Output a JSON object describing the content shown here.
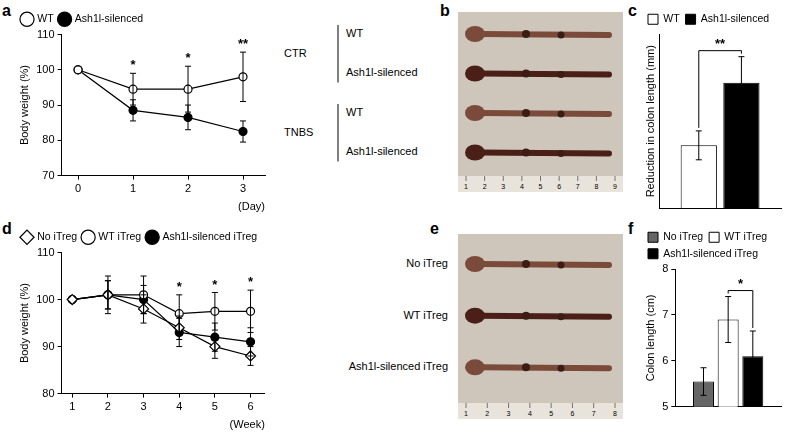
{
  "chart_data": [
    {
      "panel": "a",
      "type": "line",
      "y_label": "Body weight (%)",
      "x_label": "(Day)",
      "x": [
        0,
        1,
        2,
        3
      ],
      "xlim": [
        -0.3,
        3.4
      ],
      "xticks": [
        0,
        1,
        2,
        3
      ],
      "ylim": [
        70,
        110
      ],
      "yticks": [
        70,
        80,
        90,
        100,
        110
      ],
      "grid": false,
      "legend": "top-left",
      "series": [
        {
          "name": "WT",
          "color": "#000000",
          "marker": "circle-open",
          "values": [
            100,
            94.5,
            94.5,
            98
          ],
          "errors": [
            0,
            4.5,
            6.5,
            7
          ]
        },
        {
          "name": "Ash1l-silenced",
          "color": "#000000",
          "marker": "circle",
          "values": [
            100,
            88.5,
            86.5,
            82.5
          ],
          "errors": [
            0,
            3,
            3.5,
            3
          ]
        }
      ],
      "annotations": [
        {
          "x": 1,
          "text": "*"
        },
        {
          "x": 2,
          "text": "*"
        },
        {
          "x": 3,
          "text": "**"
        }
      ]
    },
    {
      "panel": "c",
      "type": "bar",
      "y_label": "Reduction in colon length (mm)",
      "categories": [
        null
      ],
      "ylim": [
        0,
        18
      ],
      "tick_labels": false,
      "grid": false,
      "legend": "top-left",
      "series": [
        {
          "name": "WT",
          "color": "#ffffff",
          "values": [
            6.5
          ],
          "errors": [
            1.5
          ]
        },
        {
          "name": "Ash1l-silenced",
          "color": "#000000",
          "values": [
            13
          ],
          "errors": [
            2.7
          ]
        }
      ],
      "annotations": [
        {
          "between": [
            "WT",
            "Ash1l-silenced"
          ],
          "text": "**"
        }
      ]
    },
    {
      "panel": "d",
      "type": "line",
      "y_label": "Body weight (%)",
      "x_label": "(Week)",
      "x": [
        1,
        2,
        3,
        4,
        5,
        6
      ],
      "xlim": [
        0.7,
        6.4
      ],
      "xticks": [
        1,
        2,
        3,
        4,
        5,
        6
      ],
      "ylim": [
        80,
        110
      ],
      "yticks": [
        80,
        90,
        100,
        110
      ],
      "grid": false,
      "legend": "top-left",
      "series": [
        {
          "name": "No iTreg",
          "color": "#000000",
          "marker": "diamond-open",
          "values": [
            100,
            101,
            98,
            94,
            90,
            88
          ],
          "errors": [
            0,
            4,
            3,
            2.5,
            2.5,
            2
          ]
        },
        {
          "name": "WT iTreg",
          "color": "#000000",
          "marker": "circle-open",
          "values": [
            100,
            101,
            101,
            97,
            97.5,
            97.5
          ],
          "errors": [
            0,
            3,
            4,
            4,
            4,
            4.5
          ]
        },
        {
          "name": "Ash1l-silenced iTreg",
          "color": "#000000",
          "marker": "circle",
          "values": [
            100,
            101,
            100,
            93,
            92,
            91
          ],
          "errors": [
            0,
            3,
            3,
            3,
            3,
            3
          ]
        }
      ],
      "annotations": [
        {
          "x": 4,
          "text": "*"
        },
        {
          "x": 5,
          "text": "*"
        },
        {
          "x": 6,
          "text": "*"
        }
      ]
    },
    {
      "panel": "f",
      "type": "bar",
      "y_label": "Colon length (cm)",
      "categories": [
        null
      ],
      "ylim": [
        5,
        8
      ],
      "yticks": [
        5,
        6,
        7,
        8
      ],
      "grid": false,
      "legend": "top-left",
      "series": [
        {
          "name": "No iTreg",
          "color": "#666666",
          "values": [
            5.55
          ],
          "errors": [
            0.3
          ]
        },
        {
          "name": "WT iTreg",
          "color": "#ffffff",
          "values": [
            6.9
          ],
          "errors": [
            0.5
          ]
        },
        {
          "name": "Ash1l-silenced iTreg",
          "color": "#000000",
          "values": [
            6.1
          ],
          "errors": [
            0.55
          ]
        }
      ],
      "annotations": [
        {
          "between": [
            "WT iTreg",
            "Ash1l-silenced iTreg"
          ],
          "text": "*"
        }
      ]
    }
  ],
  "photo_panels": [
    {
      "panel": "b",
      "groups": [
        {
          "label": "CTR",
          "rows": [
            "WT",
            "Ash1l-silenced"
          ]
        },
        {
          "label": "TNBS",
          "rows": [
            "WT",
            "Ash1l-silenced"
          ]
        }
      ],
      "ruler_labels": [
        1,
        2,
        3,
        4,
        5,
        6,
        7,
        8,
        9
      ]
    },
    {
      "panel": "e",
      "rows": [
        "No iTreg",
        "WT iTreg",
        "Ash1l-silenced iTreg"
      ],
      "ruler_labels": [
        1,
        2,
        3,
        4,
        5,
        6,
        7,
        8
      ]
    }
  ]
}
